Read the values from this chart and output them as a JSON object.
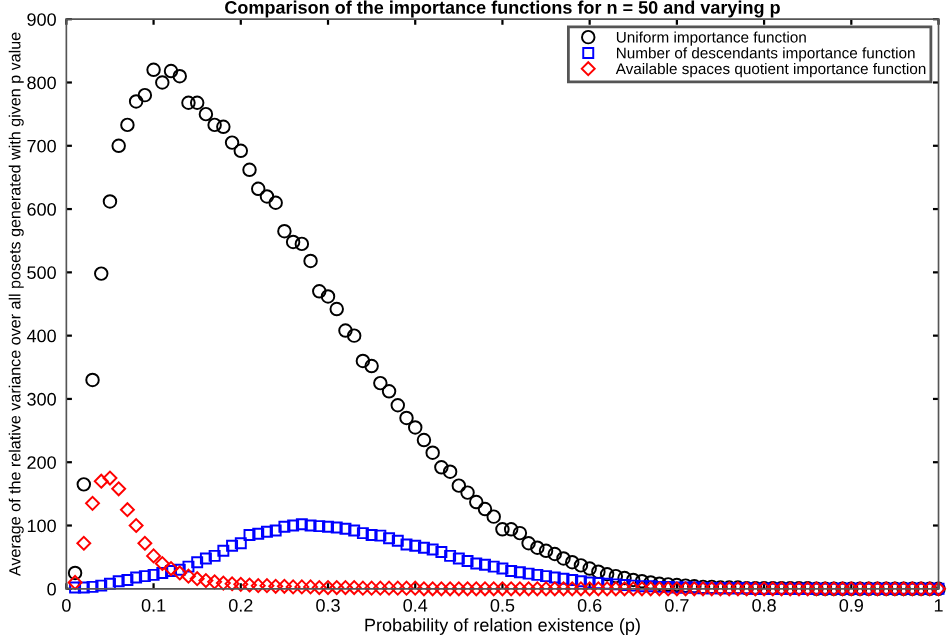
{
  "chart_data": {
    "type": "scatter",
    "title": "Comparison of the importance functions for n = 50 and varying p",
    "xlabel": "Probability of relation existence (p)",
    "ylabel": "Average of the relative variance over all posets generated with given p value",
    "x": [
      0.01,
      0.02,
      0.03,
      0.04,
      0.05,
      0.06,
      0.07,
      0.08,
      0.09,
      0.1,
      0.11,
      0.12,
      0.13,
      0.14,
      0.15,
      0.16,
      0.17,
      0.18,
      0.19,
      0.2,
      0.21,
      0.22,
      0.23,
      0.24,
      0.25,
      0.26,
      0.27,
      0.28,
      0.29,
      0.3,
      0.31,
      0.32,
      0.33,
      0.34,
      0.35,
      0.36,
      0.37,
      0.38,
      0.39,
      0.4,
      0.41,
      0.42,
      0.43,
      0.44,
      0.45,
      0.46,
      0.47,
      0.48,
      0.49,
      0.5,
      0.51,
      0.52,
      0.53,
      0.54,
      0.55,
      0.56,
      0.57,
      0.58,
      0.59,
      0.6,
      0.61,
      0.62,
      0.63,
      0.64,
      0.65,
      0.66,
      0.67,
      0.68,
      0.69,
      0.7,
      0.71,
      0.72,
      0.73,
      0.74,
      0.75,
      0.76,
      0.77,
      0.78,
      0.79,
      0.8,
      0.81,
      0.82,
      0.83,
      0.84,
      0.85,
      0.86,
      0.87,
      0.88,
      0.89,
      0.9,
      0.91,
      0.92,
      0.93,
      0.94,
      0.95,
      0.96,
      0.97,
      0.98,
      0.99,
      1.0
    ],
    "series": [
      {
        "name": "Uniform importance function",
        "color": "#000000",
        "marker": "circle",
        "values": [
          25,
          165,
          330,
          498,
          612,
          700,
          733,
          770,
          780,
          820,
          800,
          818,
          810,
          768,
          768,
          750,
          733,
          730,
          705,
          692,
          662,
          632,
          620,
          610,
          565,
          548,
          545,
          518,
          470,
          462,
          442,
          408,
          400,
          360,
          352,
          325,
          312,
          290,
          270,
          255,
          235,
          215,
          192,
          185,
          163,
          152,
          137,
          126,
          114,
          94,
          94,
          88,
          72,
          65,
          60,
          55,
          48,
          42,
          37,
          32,
          27,
          23,
          20,
          17,
          14,
          12,
          10,
          8,
          7,
          6,
          5,
          4,
          3,
          3,
          2,
          2,
          2,
          1,
          1,
          1,
          1,
          1,
          1,
          1,
          1,
          0,
          0,
          0,
          0,
          0,
          0,
          0,
          0,
          0,
          0,
          0,
          0,
          0,
          0,
          0
        ]
      },
      {
        "name": "Number of descendants importance function",
        "color": "#0000ff",
        "marker": "square",
        "values": [
          2,
          2,
          3,
          5,
          8,
          12,
          14,
          18,
          20,
          22,
          25,
          28,
          30,
          35,
          42,
          48,
          52,
          60,
          68,
          72,
          85,
          87,
          90,
          92,
          98,
          100,
          102,
          100,
          99,
          98,
          97,
          95,
          92,
          88,
          85,
          84,
          80,
          76,
          70,
          68,
          65,
          62,
          58,
          52,
          48,
          44,
          40,
          38,
          35,
          32,
          28,
          26,
          24,
          22,
          20,
          18,
          16,
          14,
          12,
          10,
          9,
          8,
          7,
          6,
          5,
          4,
          4,
          3,
          3,
          2,
          2,
          2,
          1,
          1,
          1,
          1,
          1,
          1,
          0,
          0,
          0,
          0,
          0,
          0,
          0,
          0,
          0,
          0,
          0,
          0,
          0,
          0,
          0,
          0,
          0,
          0,
          0,
          0,
          0,
          0
        ]
      },
      {
        "name": "Available spaces quotient importance function",
        "color": "#ff0000",
        "marker": "diamond",
        "values": [
          10,
          72,
          135,
          170,
          175,
          158,
          125,
          100,
          72,
          52,
          40,
          32,
          25,
          20,
          16,
          13,
          11,
          9,
          8,
          7,
          6,
          5,
          5,
          4,
          4,
          3,
          3,
          3,
          2,
          2,
          2,
          2,
          2,
          1,
          1,
          1,
          1,
          1,
          1,
          1,
          0,
          0,
          0,
          0,
          0,
          0,
          0,
          0,
          0,
          0,
          0,
          0,
          0,
          0,
          0,
          0,
          0,
          0,
          0,
          0,
          0,
          0,
          0,
          0,
          0,
          0,
          0,
          0,
          0,
          0,
          0,
          0,
          0,
          0,
          0,
          0,
          0,
          0,
          0,
          0,
          0,
          0,
          0,
          0,
          0,
          0,
          0,
          0,
          0,
          0,
          0,
          0,
          0,
          0,
          0,
          0,
          0,
          0,
          0,
          0
        ]
      }
    ],
    "xlim": [
      0,
      1
    ],
    "xticks": [
      0,
      0.1,
      0.2,
      0.3,
      0.4,
      0.5,
      0.6,
      0.7,
      0.8,
      0.9,
      1
    ],
    "ylim": [
      0,
      900
    ],
    "yticks": [
      0,
      100,
      200,
      300,
      400,
      500,
      600,
      700,
      800,
      900
    ],
    "grid": false,
    "legend": "top right"
  }
}
